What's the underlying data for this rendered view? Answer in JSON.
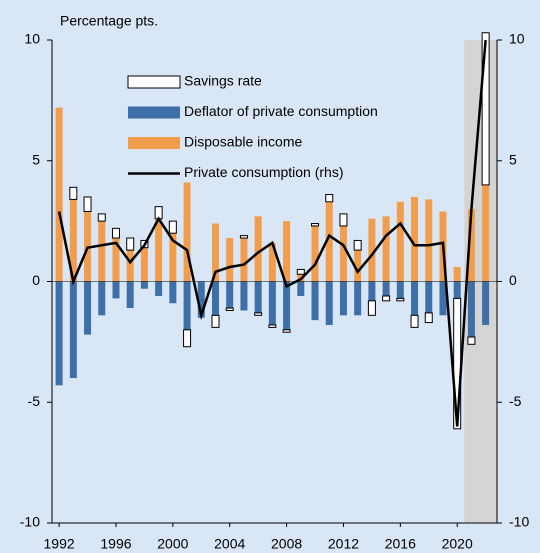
{
  "chart_data": {
    "type": "bar",
    "title": "Percentage pts.",
    "x": [
      1992,
      1993,
      1994,
      1995,
      1996,
      1997,
      1998,
      1999,
      2000,
      2001,
      2002,
      2003,
      2004,
      2005,
      2006,
      2007,
      2008,
      2009,
      2010,
      2011,
      2012,
      2013,
      2014,
      2015,
      2016,
      2017,
      2018,
      2019,
      2020,
      2021,
      2022
    ],
    "xlim": [
      1991.5,
      2022.8
    ],
    "xticks": [
      1992,
      1996,
      2000,
      2004,
      2008,
      2012,
      2016,
      2020
    ],
    "ylim": [
      -10,
      10
    ],
    "yticks": [
      -10,
      -5,
      0,
      5,
      10
    ],
    "y2lim": [
      -10,
      10
    ],
    "y2ticks": [
      -10,
      -5,
      0,
      5,
      10
    ],
    "shaded_x": [
      2020.5,
      2022.8
    ],
    "background": "#d9e6f5",
    "shade_color": "#d4d4d4",
    "series": [
      {
        "name": "Savings rate",
        "type": "bar",
        "color": "#ffffff",
        "values": [
          0,
          0.5,
          0.6,
          0.3,
          0.4,
          0.5,
          0.3,
          0.5,
          0.5,
          -0.7,
          0,
          -0.5,
          -0.1,
          0.1,
          -0.1,
          -0.1,
          -0.1,
          0.2,
          0.1,
          0.3,
          0.5,
          0.4,
          -0.6,
          -0.2,
          -0.1,
          -0.5,
          -0.4,
          0,
          -5.4,
          -0.3,
          6.3
        ]
      },
      {
        "name": "Deflator of private consumption",
        "type": "bar",
        "color": "#3f6fa8",
        "values": [
          -4.3,
          -4.0,
          -2.2,
          -1.4,
          -0.7,
          -1.1,
          -0.3,
          -0.6,
          -0.9,
          -2.0,
          -1.5,
          -1.4,
          -1.1,
          -1.2,
          -1.3,
          -1.8,
          -2.0,
          -0.6,
          -1.6,
          -1.8,
          -1.4,
          -1.4,
          -0.8,
          -0.6,
          -0.7,
          -1.4,
          -1.3,
          -1.4,
          -0.7,
          -2.3,
          -1.8
        ]
      },
      {
        "name": "Disposable income",
        "type": "bar",
        "color": "#f29d4b",
        "values": [
          7.2,
          3.4,
          2.9,
          2.5,
          1.8,
          1.3,
          1.4,
          2.6,
          2.0,
          4.1,
          0,
          2.4,
          1.8,
          1.8,
          2.7,
          1.6,
          2.5,
          0.3,
          2.3,
          3.3,
          2.3,
          1.3,
          2.6,
          2.7,
          3.3,
          3.5,
          3.4,
          2.9,
          0.6,
          3.0,
          4.0
        ]
      },
      {
        "name": "Private consumption (rhs)",
        "type": "line",
        "axis": "y2",
        "color": "#000000",
        "values": [
          2.9,
          0.0,
          1.4,
          1.5,
          1.6,
          0.8,
          1.5,
          2.6,
          1.7,
          1.3,
          -1.4,
          0.4,
          0.6,
          0.7,
          1.2,
          1.6,
          -0.2,
          0.1,
          0.7,
          1.9,
          1.5,
          0.4,
          1.1,
          1.9,
          2.4,
          1.5,
          1.5,
          1.6,
          -6.0,
          3.0,
          10.0
        ]
      }
    ]
  }
}
